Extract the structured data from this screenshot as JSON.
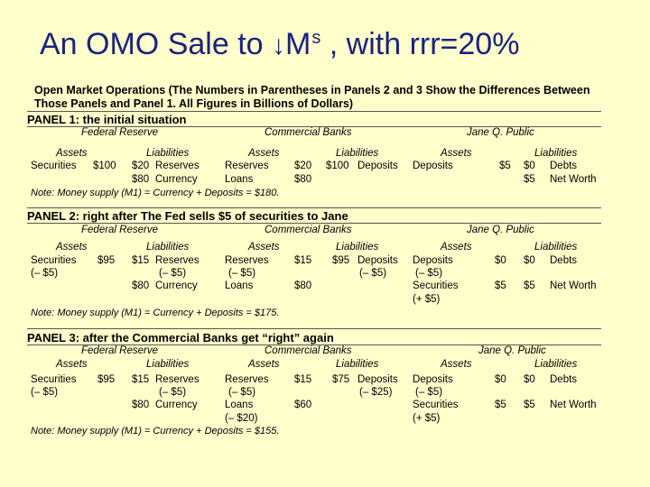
{
  "title": {
    "prefix": "An OMO Sale to ",
    "arrow": "↓",
    "symbol": "M",
    "superscript": "s",
    "suffix": " , with rrr=20%"
  },
  "intro": "Open Market Operations (The Numbers in Parentheses in Panels 2 and 3 Show the Differences Between Those Panels and Panel 1. All Figures in Billions of Dollars)",
  "labels": {
    "fed": "Federal Reserve",
    "banks": "Commercial Banks",
    "jane": "Jane Q. Public",
    "assets": "Assets",
    "liabilities": "Liabilities"
  },
  "panel1": {
    "heading": "PANEL 1: the initial situation",
    "fed_assets": [
      "Securities",
      "$100"
    ],
    "fed_liab": [
      [
        "$20",
        "Reserves"
      ],
      [
        "$80",
        "Currency"
      ]
    ],
    "bank_assets": [
      [
        "Reserves",
        "$20"
      ],
      [
        "Loans",
        "$80"
      ]
    ],
    "bank_liab": [
      [
        "$100",
        "Deposits"
      ]
    ],
    "jane_assets": [
      [
        "Deposits",
        "$5"
      ]
    ],
    "jane_liab": [
      [
        "$0",
        "Debts"
      ],
      [
        "$5",
        "Net Worth"
      ]
    ],
    "note": "Note: Money supply (M1) = Currency + Deposits = $180."
  },
  "panel2": {
    "heading": "PANEL 2: right after The Fed sells $5 of securities to Jane",
    "fed_assets": [
      "Securities",
      "$95",
      "(– $5)"
    ],
    "fed_liab": [
      [
        "$15",
        "Reserves"
      ],
      [
        "(– $5)",
        ""
      ],
      [
        "$80",
        "Currency"
      ]
    ],
    "bank_assets": [
      [
        "Reserves",
        "$15"
      ],
      [
        "(– $5)",
        ""
      ],
      [
        "Loans",
        "$80"
      ]
    ],
    "bank_liab": [
      [
        "$95",
        "Deposits"
      ],
      [
        "(– $5)",
        ""
      ]
    ],
    "jane_assets": [
      [
        "Deposits",
        "$0"
      ],
      [
        "(– $5)",
        ""
      ],
      [
        "Securities",
        "$5"
      ],
      [
        "(+ $5)",
        ""
      ]
    ],
    "jane_liab": [
      [
        "$0",
        "Debts"
      ],
      [
        "$5",
        "Net Worth"
      ]
    ],
    "note": "Note: Money supply (M1) = Currency + Deposits = $175."
  },
  "panel3": {
    "heading": "PANEL 3: after the Commercial Banks get “right” again",
    "fed_assets": [
      "Securities",
      "$95",
      "(– $5)"
    ],
    "fed_liab": [
      [
        "$15",
        "Reserves"
      ],
      [
        "(– $5)",
        ""
      ],
      [
        "$80",
        "Currency"
      ]
    ],
    "bank_assets": [
      [
        "Reserves",
        "$15"
      ],
      [
        "(– $5)",
        ""
      ],
      [
        "Loans",
        "$60"
      ],
      [
        "(– $20)",
        ""
      ]
    ],
    "bank_liab": [
      [
        "$75",
        "Deposits"
      ],
      [
        "(– $25)",
        ""
      ]
    ],
    "jane_assets": [
      [
        "Deposits",
        "$0"
      ],
      [
        "(– $5)",
        ""
      ],
      [
        "Securities",
        "$5"
      ],
      [
        "(+ $5)",
        ""
      ]
    ],
    "jane_liab": [
      [
        "$0",
        "Debts"
      ],
      [
        "$5",
        "Net Worth"
      ]
    ],
    "note": "Note: Money supply (M1) = Currency + Deposits = $155."
  }
}
